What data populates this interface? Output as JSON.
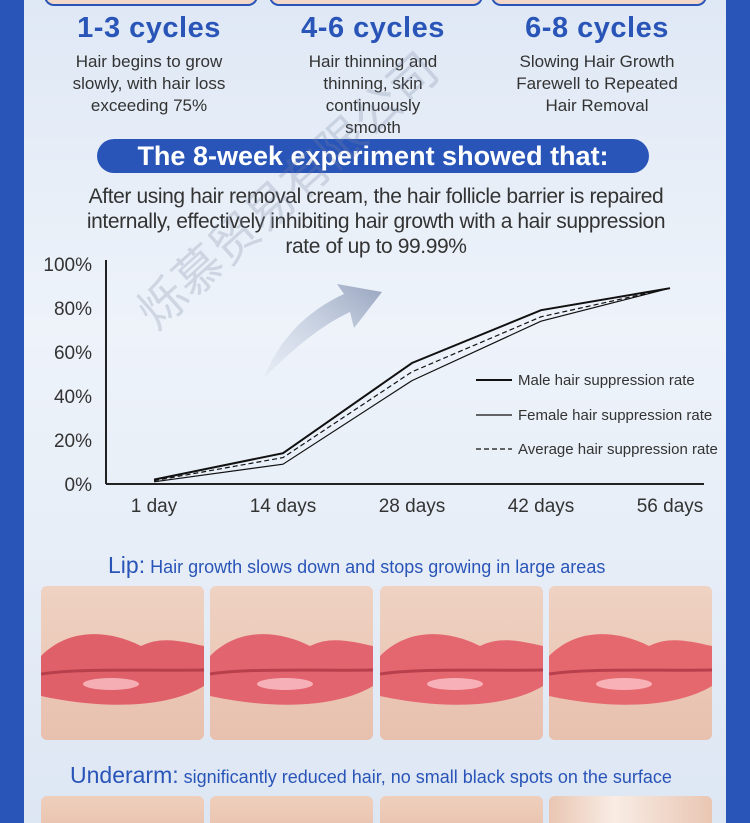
{
  "cycles": [
    {
      "title": "1-3 cycles",
      "desc": "Hair begins to grow slowly, with hair loss exceeding 75%"
    },
    {
      "title": "4-6 cycles",
      "desc": "Hair thinning and thinning, skin continuously smooth"
    },
    {
      "title": "6-8 cycles",
      "desc": "Slowing Hair Growth Farewell to Repeated Hair Removal"
    }
  ],
  "banner": "The 8-week experiment showed that:",
  "summary": "After using hair removal cream, the hair follicle barrier is repaired internally, effectively inhibiting hair growth with a hair suppression rate of up to 99.99%",
  "chart_data": {
    "type": "line",
    "categories": [
      "1 day",
      "14 days",
      "28 days",
      "42 days",
      "56 days"
    ],
    "yticks": [
      "100%",
      "80%",
      "60%",
      "40%",
      "20%",
      "0%"
    ],
    "ylim": [
      0,
      100
    ],
    "series": [
      {
        "name": "Male hair suppression rate",
        "values": [
          2,
          14,
          55,
          79,
          89
        ]
      },
      {
        "name": "Female hair suppression rate",
        "values": [
          1,
          9,
          47,
          74,
          89
        ]
      },
      {
        "name": "Average hair suppression rate",
        "values": [
          1.5,
          12,
          51,
          76,
          89
        ]
      }
    ],
    "legend": "right"
  },
  "lip": {
    "title": "Lip:",
    "subtitle": " Hair growth slows down and stops growing in large areas"
  },
  "underarm": {
    "title": "Underarm:",
    "subtitle": " significantly reduced hair, no small black spots on the surface"
  },
  "watermark": "烁慕贸易有限公司",
  "colors": {
    "brand": "#2a55b8",
    "text": "#333333"
  }
}
